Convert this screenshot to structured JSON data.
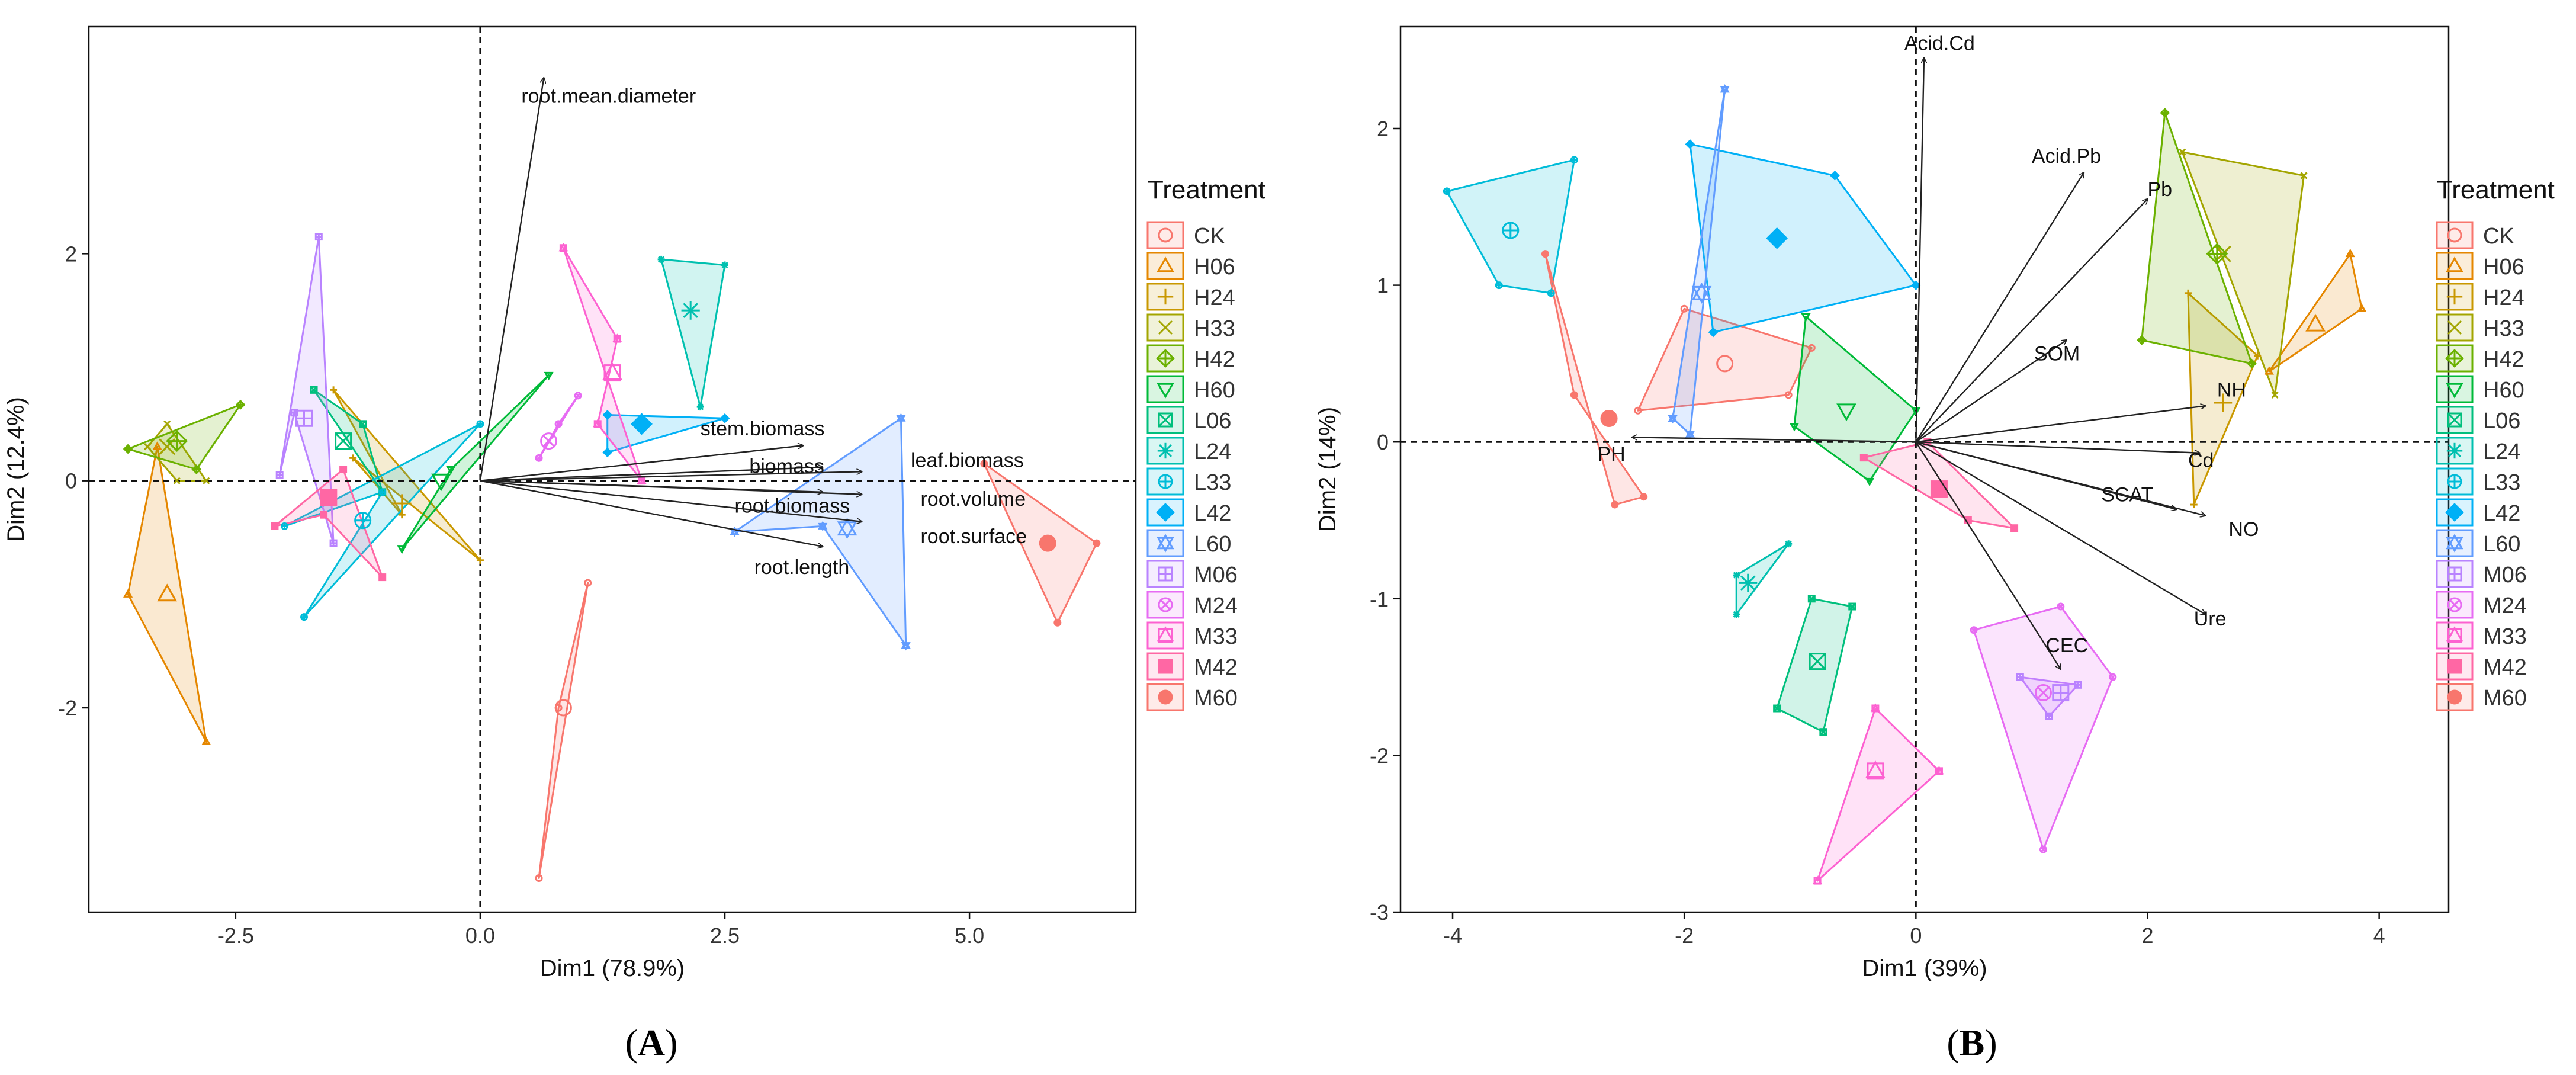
{
  "panels": [
    {
      "label_open": "(",
      "label_letter": "A",
      "label_close": ")"
    },
    {
      "label_open": "(",
      "label_letter": "B",
      "label_close": ")"
    }
  ],
  "legend": {
    "title": "Treatment",
    "entries": [
      {
        "name": "CK",
        "color": "#F8766D",
        "shape": "circle-open"
      },
      {
        "name": "H06",
        "color": "#E58700",
        "shape": "triangle-open"
      },
      {
        "name": "H24",
        "color": "#C99800",
        "shape": "plus"
      },
      {
        "name": "H33",
        "color": "#A3A500",
        "shape": "cross"
      },
      {
        "name": "H42",
        "color": "#6BB100",
        "shape": "diamond-plus"
      },
      {
        "name": "H60",
        "color": "#00BA38",
        "shape": "triangle-down-open"
      },
      {
        "name": "L06",
        "color": "#00BF7D",
        "shape": "square-cross"
      },
      {
        "name": "L24",
        "color": "#00C0AF",
        "shape": "asterisk"
      },
      {
        "name": "L33",
        "color": "#00BCD8",
        "shape": "circle-plus"
      },
      {
        "name": "L42",
        "color": "#00B0F6",
        "shape": "diamond"
      },
      {
        "name": "L60",
        "color": "#619CFF",
        "shape": "star-of-david"
      },
      {
        "name": "M06",
        "color": "#B983FF",
        "shape": "square-plus"
      },
      {
        "name": "M24",
        "color": "#E76BF3",
        "shape": "circle-cross"
      },
      {
        "name": "M33",
        "color": "#FD61D1",
        "shape": "square-triangle"
      },
      {
        "name": "M42",
        "color": "#FF67A4",
        "shape": "square"
      },
      {
        "name": "M60",
        "color": "#F8766D",
        "shape": "circle"
      }
    ]
  },
  "chart_data": [
    {
      "type": "scatter",
      "subtype": "pca-biplot",
      "xlabel": "Dim1 (78.9%)",
      "ylabel": "Dim2 (12.4%)",
      "xlim": [
        -4.0,
        6.7
      ],
      "ylim": [
        -3.8,
        4.0
      ],
      "xticks": [
        -2.5,
        0.0,
        2.5,
        5.0
      ],
      "xtick_labels": [
        "-2.5",
        "0.0",
        "2.5",
        "5.0"
      ],
      "yticks": [
        -2,
        0,
        2
      ],
      "ytick_labels": [
        "-2",
        "0",
        "2"
      ],
      "grid": false,
      "legend_position": "right",
      "vectors": [
        {
          "label": "root.mean.diameter",
          "end": [
            0.65,
            3.55
          ],
          "label_at": [
            0.42,
            3.33
          ]
        },
        {
          "label": "stem.biomass",
          "end": [
            3.3,
            0.31
          ],
          "label_at": [
            2.25,
            0.4
          ]
        },
        {
          "label": "biomass",
          "end": [
            3.5,
            0.12
          ],
          "label_at": [
            2.75,
            0.07
          ]
        },
        {
          "label": "leaf.biomass",
          "end": [
            3.9,
            0.08
          ],
          "label_at": [
            4.4,
            0.12
          ]
        },
        {
          "label": "root.biomass",
          "end": [
            3.5,
            -0.1
          ],
          "label_at": [
            2.6,
            -0.28
          ]
        },
        {
          "label": "root.volume",
          "end": [
            3.9,
            -0.12
          ],
          "label_at": [
            4.5,
            -0.22
          ]
        },
        {
          "label": "root.surface",
          "end": [
            3.9,
            -0.36
          ],
          "label_at": [
            4.5,
            -0.55
          ]
        },
        {
          "label": "root.length",
          "end": [
            3.5,
            -0.58
          ],
          "label_at": [
            2.8,
            -0.82
          ]
        }
      ],
      "groups": [
        {
          "name": "CK",
          "center": [
            0.85,
            -2.0
          ],
          "hull": [
            [
              0.6,
              -3.5
            ],
            [
              1.1,
              -0.9
            ],
            [
              0.8,
              -2.0
            ]
          ]
        },
        {
          "name": "H06",
          "center": [
            -3.2,
            -1.0
          ],
          "hull": [
            [
              -3.6,
              -1.0
            ],
            [
              -3.3,
              0.3
            ],
            [
              -2.8,
              -2.3
            ]
          ]
        },
        {
          "name": "H24",
          "center": [
            -0.8,
            -0.2
          ],
          "hull": [
            [
              -1.5,
              0.8
            ],
            [
              0.0,
              -0.7
            ],
            [
              -1.3,
              0.2
            ],
            [
              -0.8,
              -0.3
            ]
          ]
        },
        {
          "name": "H33",
          "center": [
            -3.2,
            0.3
          ],
          "hull": [
            [
              -3.4,
              0.3
            ],
            [
              -3.2,
              0.5
            ],
            [
              -2.8,
              0.0
            ],
            [
              -3.1,
              0.0
            ]
          ]
        },
        {
          "name": "H42",
          "center": [
            -3.1,
            0.35
          ],
          "hull": [
            [
              -3.6,
              0.28
            ],
            [
              -2.45,
              0.67
            ],
            [
              -2.9,
              0.1
            ]
          ]
        },
        {
          "name": "H60",
          "center": [
            -0.4,
            0.0
          ],
          "hull": [
            [
              -0.8,
              -0.6
            ],
            [
              0.7,
              0.93
            ],
            [
              -0.3,
              0.1
            ]
          ]
        },
        {
          "name": "L06",
          "center": [
            -1.4,
            0.35
          ],
          "hull": [
            [
              -1.7,
              0.8
            ],
            [
              -1.0,
              -0.1
            ],
            [
              -1.2,
              0.5
            ]
          ]
        },
        {
          "name": "L24",
          "center": [
            2.15,
            1.5
          ],
          "hull": [
            [
              1.85,
              1.95
            ],
            [
              2.5,
              1.9
            ],
            [
              2.25,
              0.65
            ]
          ]
        },
        {
          "name": "L33",
          "center": [
            -1.2,
            -0.35
          ],
          "hull": [
            [
              -2.0,
              -0.4
            ],
            [
              0.0,
              0.5
            ],
            [
              -1.8,
              -1.2
            ],
            [
              -1.0,
              -0.1
            ]
          ]
        },
        {
          "name": "L42",
          "center": [
            1.65,
            0.5
          ],
          "hull": [
            [
              1.3,
              0.58
            ],
            [
              2.5,
              0.55
            ],
            [
              1.3,
              0.25
            ]
          ]
        },
        {
          "name": "L60",
          "center": [
            3.75,
            -0.42
          ],
          "hull": [
            [
              2.6,
              -0.45
            ],
            [
              4.3,
              0.55
            ],
            [
              4.35,
              -1.45
            ],
            [
              3.5,
              -0.4
            ]
          ]
        },
        {
          "name": "M06",
          "center": [
            -1.8,
            0.55
          ],
          "hull": [
            [
              -2.05,
              0.05
            ],
            [
              -1.65,
              2.15
            ],
            [
              -1.5,
              -0.55
            ],
            [
              -1.9,
              0.6
            ]
          ]
        },
        {
          "name": "M24",
          "center": [
            0.7,
            0.35
          ],
          "hull": [
            [
              0.6,
              0.2
            ],
            [
              1.0,
              0.75
            ],
            [
              0.8,
              0.5
            ]
          ]
        },
        {
          "name": "M33",
          "center": [
            1.35,
            0.95
          ],
          "hull": [
            [
              0.85,
              2.05
            ],
            [
              1.65,
              0.0
            ],
            [
              1.2,
              0.5
            ],
            [
              1.4,
              1.25
            ]
          ]
        },
        {
          "name": "M42",
          "center": [
            -1.55,
            -0.15
          ],
          "hull": [
            [
              -2.1,
              -0.4
            ],
            [
              -1.4,
              0.1
            ],
            [
              -1.0,
              -0.85
            ],
            [
              -1.6,
              -0.3
            ]
          ]
        },
        {
          "name": "M60",
          "center": [
            5.8,
            -0.55
          ],
          "hull": [
            [
              5.15,
              0.15
            ],
            [
              6.3,
              -0.55
            ],
            [
              5.9,
              -1.25
            ]
          ]
        }
      ]
    },
    {
      "type": "scatter",
      "subtype": "pca-biplot",
      "xlabel": "Dim1 (39%)",
      "ylabel": "Dim2 (14%)",
      "xlim": [
        -4.45,
        4.6
      ],
      "ylim": [
        -3.0,
        2.65
      ],
      "xticks": [
        -4,
        -2,
        0,
        2,
        4
      ],
      "xtick_labels": [
        "-4",
        "-2",
        "0",
        "2",
        "4"
      ],
      "yticks": [
        -3,
        -2,
        -1,
        0,
        1,
        2
      ],
      "ytick_labels": [
        "-3",
        "-2",
        "-1",
        "0",
        "1",
        "2"
      ],
      "grid": false,
      "legend_position": "right",
      "vectors": [
        {
          "label": "Acid.Cd",
          "end": [
            0.07,
            2.45
          ],
          "label_at": [
            -0.1,
            2.5
          ]
        },
        {
          "label": "Acid.Pb",
          "end": [
            1.45,
            1.72
          ],
          "label_at": [
            1.0,
            1.78
          ]
        },
        {
          "label": "Pb",
          "end": [
            2.0,
            1.55
          ],
          "label_at": [
            2.0,
            1.57
          ]
        },
        {
          "label": "SOM",
          "end": [
            1.3,
            0.65
          ],
          "label_at": [
            1.02,
            0.52
          ]
        },
        {
          "label": "NH",
          "end": [
            2.5,
            0.23
          ],
          "label_at": [
            2.6,
            0.29
          ]
        },
        {
          "label": "Cd",
          "end": [
            2.45,
            -0.07
          ],
          "label_at": [
            2.35,
            -0.16
          ]
        },
        {
          "label": "SCAT",
          "end": [
            2.25,
            -0.43
          ],
          "label_at": [
            1.6,
            -0.38
          ]
        },
        {
          "label": "NO",
          "end": [
            2.5,
            -0.47
          ],
          "label_at": [
            2.7,
            -0.6
          ]
        },
        {
          "label": "Ure",
          "end": [
            2.5,
            -1.1
          ],
          "label_at": [
            2.4,
            -1.17
          ]
        },
        {
          "label": "CEC",
          "end": [
            1.25,
            -1.45
          ],
          "label_at": [
            1.12,
            -1.34
          ]
        },
        {
          "label": "PH",
          "end": [
            -2.45,
            0.03
          ],
          "label_at": [
            -2.75,
            -0.12
          ]
        }
      ],
      "groups": [
        {
          "name": "CK",
          "center": [
            -1.65,
            0.5
          ],
          "hull": [
            [
              -2.4,
              0.2
            ],
            [
              -2.0,
              0.85
            ],
            [
              -0.9,
              0.6
            ],
            [
              -1.1,
              0.3
            ]
          ]
        },
        {
          "name": "H06",
          "center": [
            3.45,
            0.75
          ],
          "hull": [
            [
              3.05,
              0.45
            ],
            [
              3.75,
              1.2
            ],
            [
              3.85,
              0.85
            ]
          ]
        },
        {
          "name": "H24",
          "center": [
            2.65,
            0.25
          ],
          "hull": [
            [
              2.35,
              0.95
            ],
            [
              2.95,
              0.55
            ],
            [
              2.4,
              -0.4
            ]
          ]
        },
        {
          "name": "H33",
          "center": [
            2.65,
            1.2
          ],
          "hull": [
            [
              2.3,
              1.85
            ],
            [
              3.35,
              1.7
            ],
            [
              3.1,
              0.3
            ]
          ]
        },
        {
          "name": "H42",
          "center": [
            2.6,
            1.2
          ],
          "hull": [
            [
              1.95,
              0.65
            ],
            [
              2.15,
              2.1
            ],
            [
              2.9,
              0.5
            ]
          ]
        },
        {
          "name": "H60",
          "center": [
            -0.6,
            0.2
          ],
          "hull": [
            [
              -1.05,
              0.1
            ],
            [
              -0.95,
              0.8
            ],
            [
              0.0,
              0.2
            ],
            [
              -0.4,
              -0.25
            ]
          ]
        },
        {
          "name": "L06",
          "center": [
            -0.85,
            -1.4
          ],
          "hull": [
            [
              -1.2,
              -1.7
            ],
            [
              -0.9,
              -1.0
            ],
            [
              -0.55,
              -1.05
            ],
            [
              -0.8,
              -1.85
            ]
          ]
        },
        {
          "name": "L24",
          "center": [
            -1.45,
            -0.9
          ],
          "hull": [
            [
              -1.55,
              -0.85
            ],
            [
              -1.1,
              -0.65
            ],
            [
              -1.55,
              -1.1
            ]
          ]
        },
        {
          "name": "L33",
          "center": [
            -3.5,
            1.35
          ],
          "hull": [
            [
              -4.05,
              1.6
            ],
            [
              -2.95,
              1.8
            ],
            [
              -3.15,
              0.95
            ],
            [
              -3.6,
              1.0
            ]
          ]
        },
        {
          "name": "L42",
          "center": [
            -1.2,
            1.3
          ],
          "hull": [
            [
              -1.95,
              1.9
            ],
            [
              -0.7,
              1.7
            ],
            [
              0.0,
              1.0
            ],
            [
              -1.75,
              0.7
            ]
          ]
        },
        {
          "name": "L60",
          "center": [
            -1.85,
            0.95
          ],
          "hull": [
            [
              -2.1,
              0.15
            ],
            [
              -1.65,
              2.25
            ],
            [
              -1.95,
              0.05
            ]
          ]
        },
        {
          "name": "M06",
          "center": [
            1.25,
            -1.6
          ],
          "hull": [
            [
              0.9,
              -1.5
            ],
            [
              1.15,
              -1.75
            ],
            [
              1.4,
              -1.55
            ]
          ]
        },
        {
          "name": "M24",
          "center": [
            1.1,
            -1.6
          ],
          "hull": [
            [
              0.5,
              -1.2
            ],
            [
              1.25,
              -1.05
            ],
            [
              1.7,
              -1.5
            ],
            [
              1.1,
              -2.6
            ]
          ]
        },
        {
          "name": "M33",
          "center": [
            -0.35,
            -2.1
          ],
          "hull": [
            [
              -0.85,
              -2.8
            ],
            [
              -0.35,
              -1.7
            ],
            [
              0.2,
              -2.1
            ]
          ]
        },
        {
          "name": "M42",
          "center": [
            0.2,
            -0.3
          ],
          "hull": [
            [
              -0.45,
              -0.1
            ],
            [
              0.45,
              -0.5
            ],
            [
              0.85,
              -0.55
            ],
            [
              0.1,
              0.0
            ]
          ]
        },
        {
          "name": "M60",
          "center": [
            -2.65,
            0.15
          ],
          "hull": [
            [
              -3.2,
              1.2
            ],
            [
              -2.6,
              -0.4
            ],
            [
              -2.35,
              -0.35
            ],
            [
              -2.95,
              0.3
            ]
          ]
        }
      ]
    }
  ]
}
